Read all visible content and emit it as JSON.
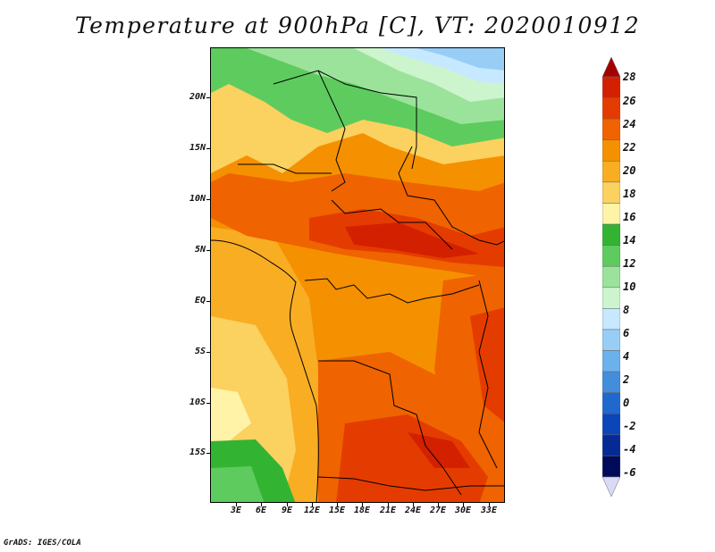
{
  "title": "Temperature at 900hPa [C], VT: 2020010912",
  "credit": "GrADS: IGES/COLA",
  "map": {
    "lat_labels": [
      "20N",
      "15N",
      "10N",
      "5N",
      "EQ",
      "5S",
      "10S",
      "15S"
    ],
    "lon_labels": [
      "3E",
      "6E",
      "9E",
      "12E",
      "15E",
      "18E",
      "21E",
      "24E",
      "27E",
      "30E",
      "33E"
    ]
  },
  "colorbar": {
    "labels": [
      "28",
      "26",
      "24",
      "22",
      "20",
      "18",
      "16",
      "14",
      "12",
      "10",
      "8",
      "6",
      "4",
      "2",
      "0",
      "-2",
      "-4",
      "-6"
    ],
    "colors": [
      "#a50000",
      "#d32000",
      "#e43c00",
      "#ef6300",
      "#f59000",
      "#f9ad23",
      "#fbd160",
      "#fff3a8",
      "#32b432",
      "#5ecb5e",
      "#9be39b",
      "#cdf5cd",
      "#c6e9ff",
      "#98cdf6",
      "#6bb1ec",
      "#428ddc",
      "#1f68cd",
      "#0a46b8",
      "#062a95",
      "#000a5a",
      "#dadaf6"
    ]
  }
}
